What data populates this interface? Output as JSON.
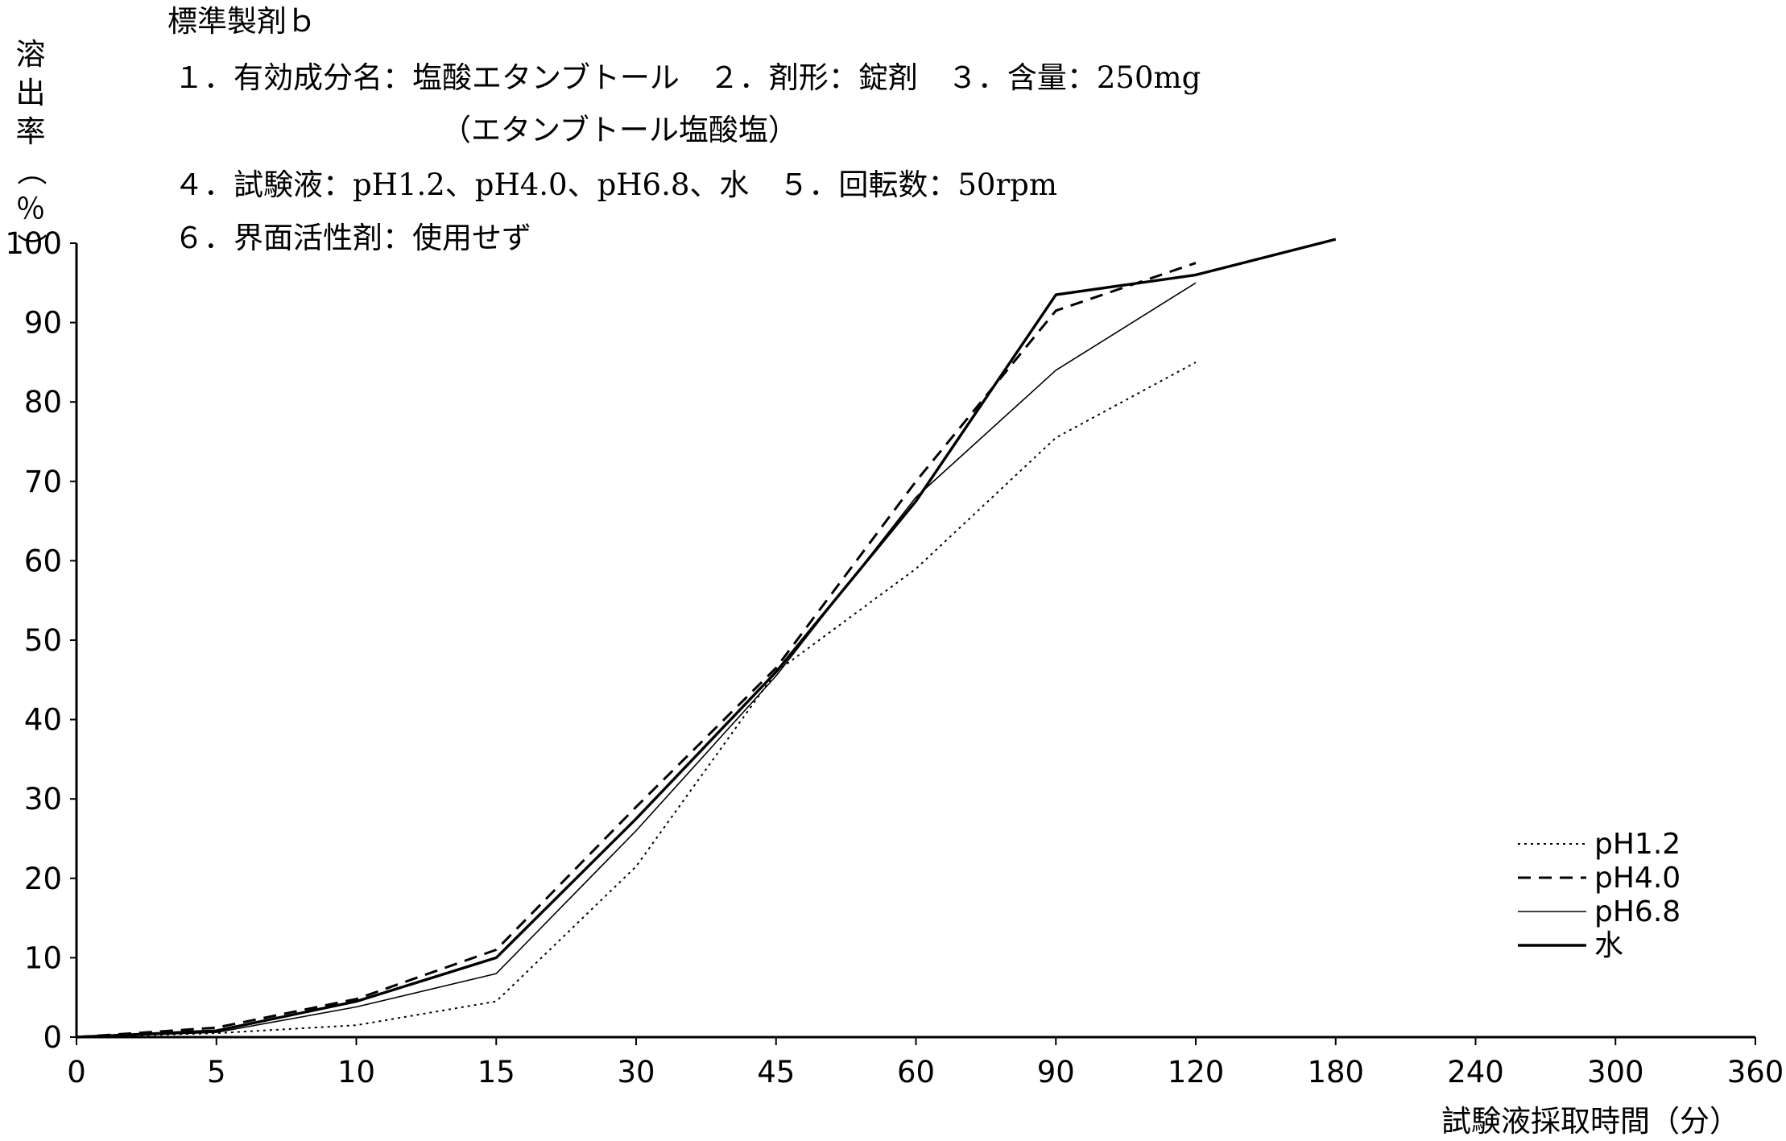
{
  "header": {
    "title": "標準製剤ｂ",
    "line1": "１．有効成分名：塩酸エタンブトール　２．剤形：錠剤　３．含量：250mg",
    "line2": "（エタンブトール塩酸塩）",
    "line3": "４．試験液：pH1.2、pH4.0、pH6.8、水　５．回転数：50rpm",
    "line4": "６．界面活性剤：使用せず"
  },
  "chart_data": {
    "type": "line",
    "title": "",
    "xlabel": "試験液採取時間（分）",
    "ylabel": "溶出率（％）",
    "x_categorical": true,
    "categories": [
      "0",
      "5",
      "10",
      "15",
      "30",
      "45",
      "60",
      "90",
      "120",
      "180",
      "240",
      "300",
      "360"
    ],
    "ylim": [
      0,
      100
    ],
    "yticks": [
      "0",
      "10",
      "20",
      "30",
      "40",
      "50",
      "60",
      "70",
      "80",
      "90",
      "100"
    ],
    "grid": false,
    "legend_position": "bottom-right",
    "series": [
      {
        "name": "pH1.2",
        "style": "dotted",
        "color": "#000000",
        "x": [
          "0",
          "5",
          "10",
          "15",
          "30",
          "45",
          "60",
          "90",
          "120"
        ],
        "values": [
          0,
          0.5,
          1.5,
          4.5,
          21.5,
          46,
          59,
          75.5,
          85
        ]
      },
      {
        "name": "pH4.0",
        "style": "dashed",
        "color": "#000000",
        "x": [
          "0",
          "5",
          "10",
          "15",
          "30",
          "45",
          "60",
          "90",
          "120"
        ],
        "values": [
          0,
          1.2,
          4.8,
          11,
          29,
          46.5,
          70,
          91.5,
          97.5
        ]
      },
      {
        "name": "pH6.8",
        "style": "thin",
        "color": "#000000",
        "x": [
          "0",
          "5",
          "10",
          "15",
          "30",
          "45",
          "60",
          "90",
          "120"
        ],
        "values": [
          0,
          0.6,
          3.8,
          8,
          26,
          45.5,
          68,
          84,
          95
        ]
      },
      {
        "name": "水",
        "style": "thick",
        "color": "#000000",
        "x": [
          "0",
          "5",
          "10",
          "15",
          "30",
          "45",
          "60",
          "90",
          "120",
          "180"
        ],
        "values": [
          0,
          0.8,
          4.5,
          10,
          27.5,
          46,
          67.5,
          93.5,
          96,
          100.5
        ]
      }
    ]
  }
}
